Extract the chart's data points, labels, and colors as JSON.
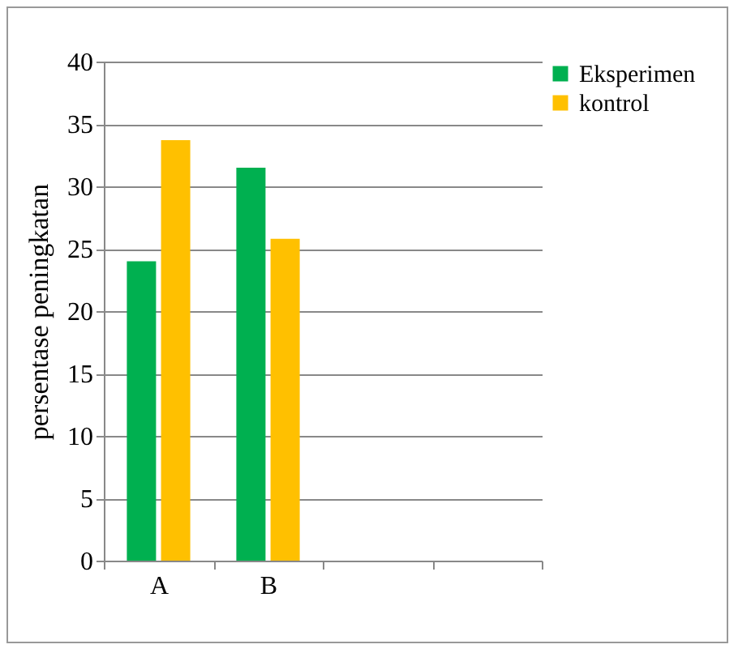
{
  "chart_data": {
    "type": "bar",
    "ylabel": "persentase peningkatan",
    "categories": [
      "A",
      "B",
      null,
      null
    ],
    "series": [
      {
        "name": "Eksperimen",
        "color": "#00b050",
        "values": [
          24,
          31.5,
          null,
          null
        ]
      },
      {
        "name": "kontrol",
        "color": "#ffc000",
        "values": [
          33.7,
          25.8,
          null,
          null
        ]
      }
    ],
    "ylim": [
      0,
      40
    ],
    "yticks": [
      0,
      5,
      10,
      15,
      20,
      25,
      30,
      35,
      40
    ],
    "grid": "y",
    "legend": "right"
  }
}
